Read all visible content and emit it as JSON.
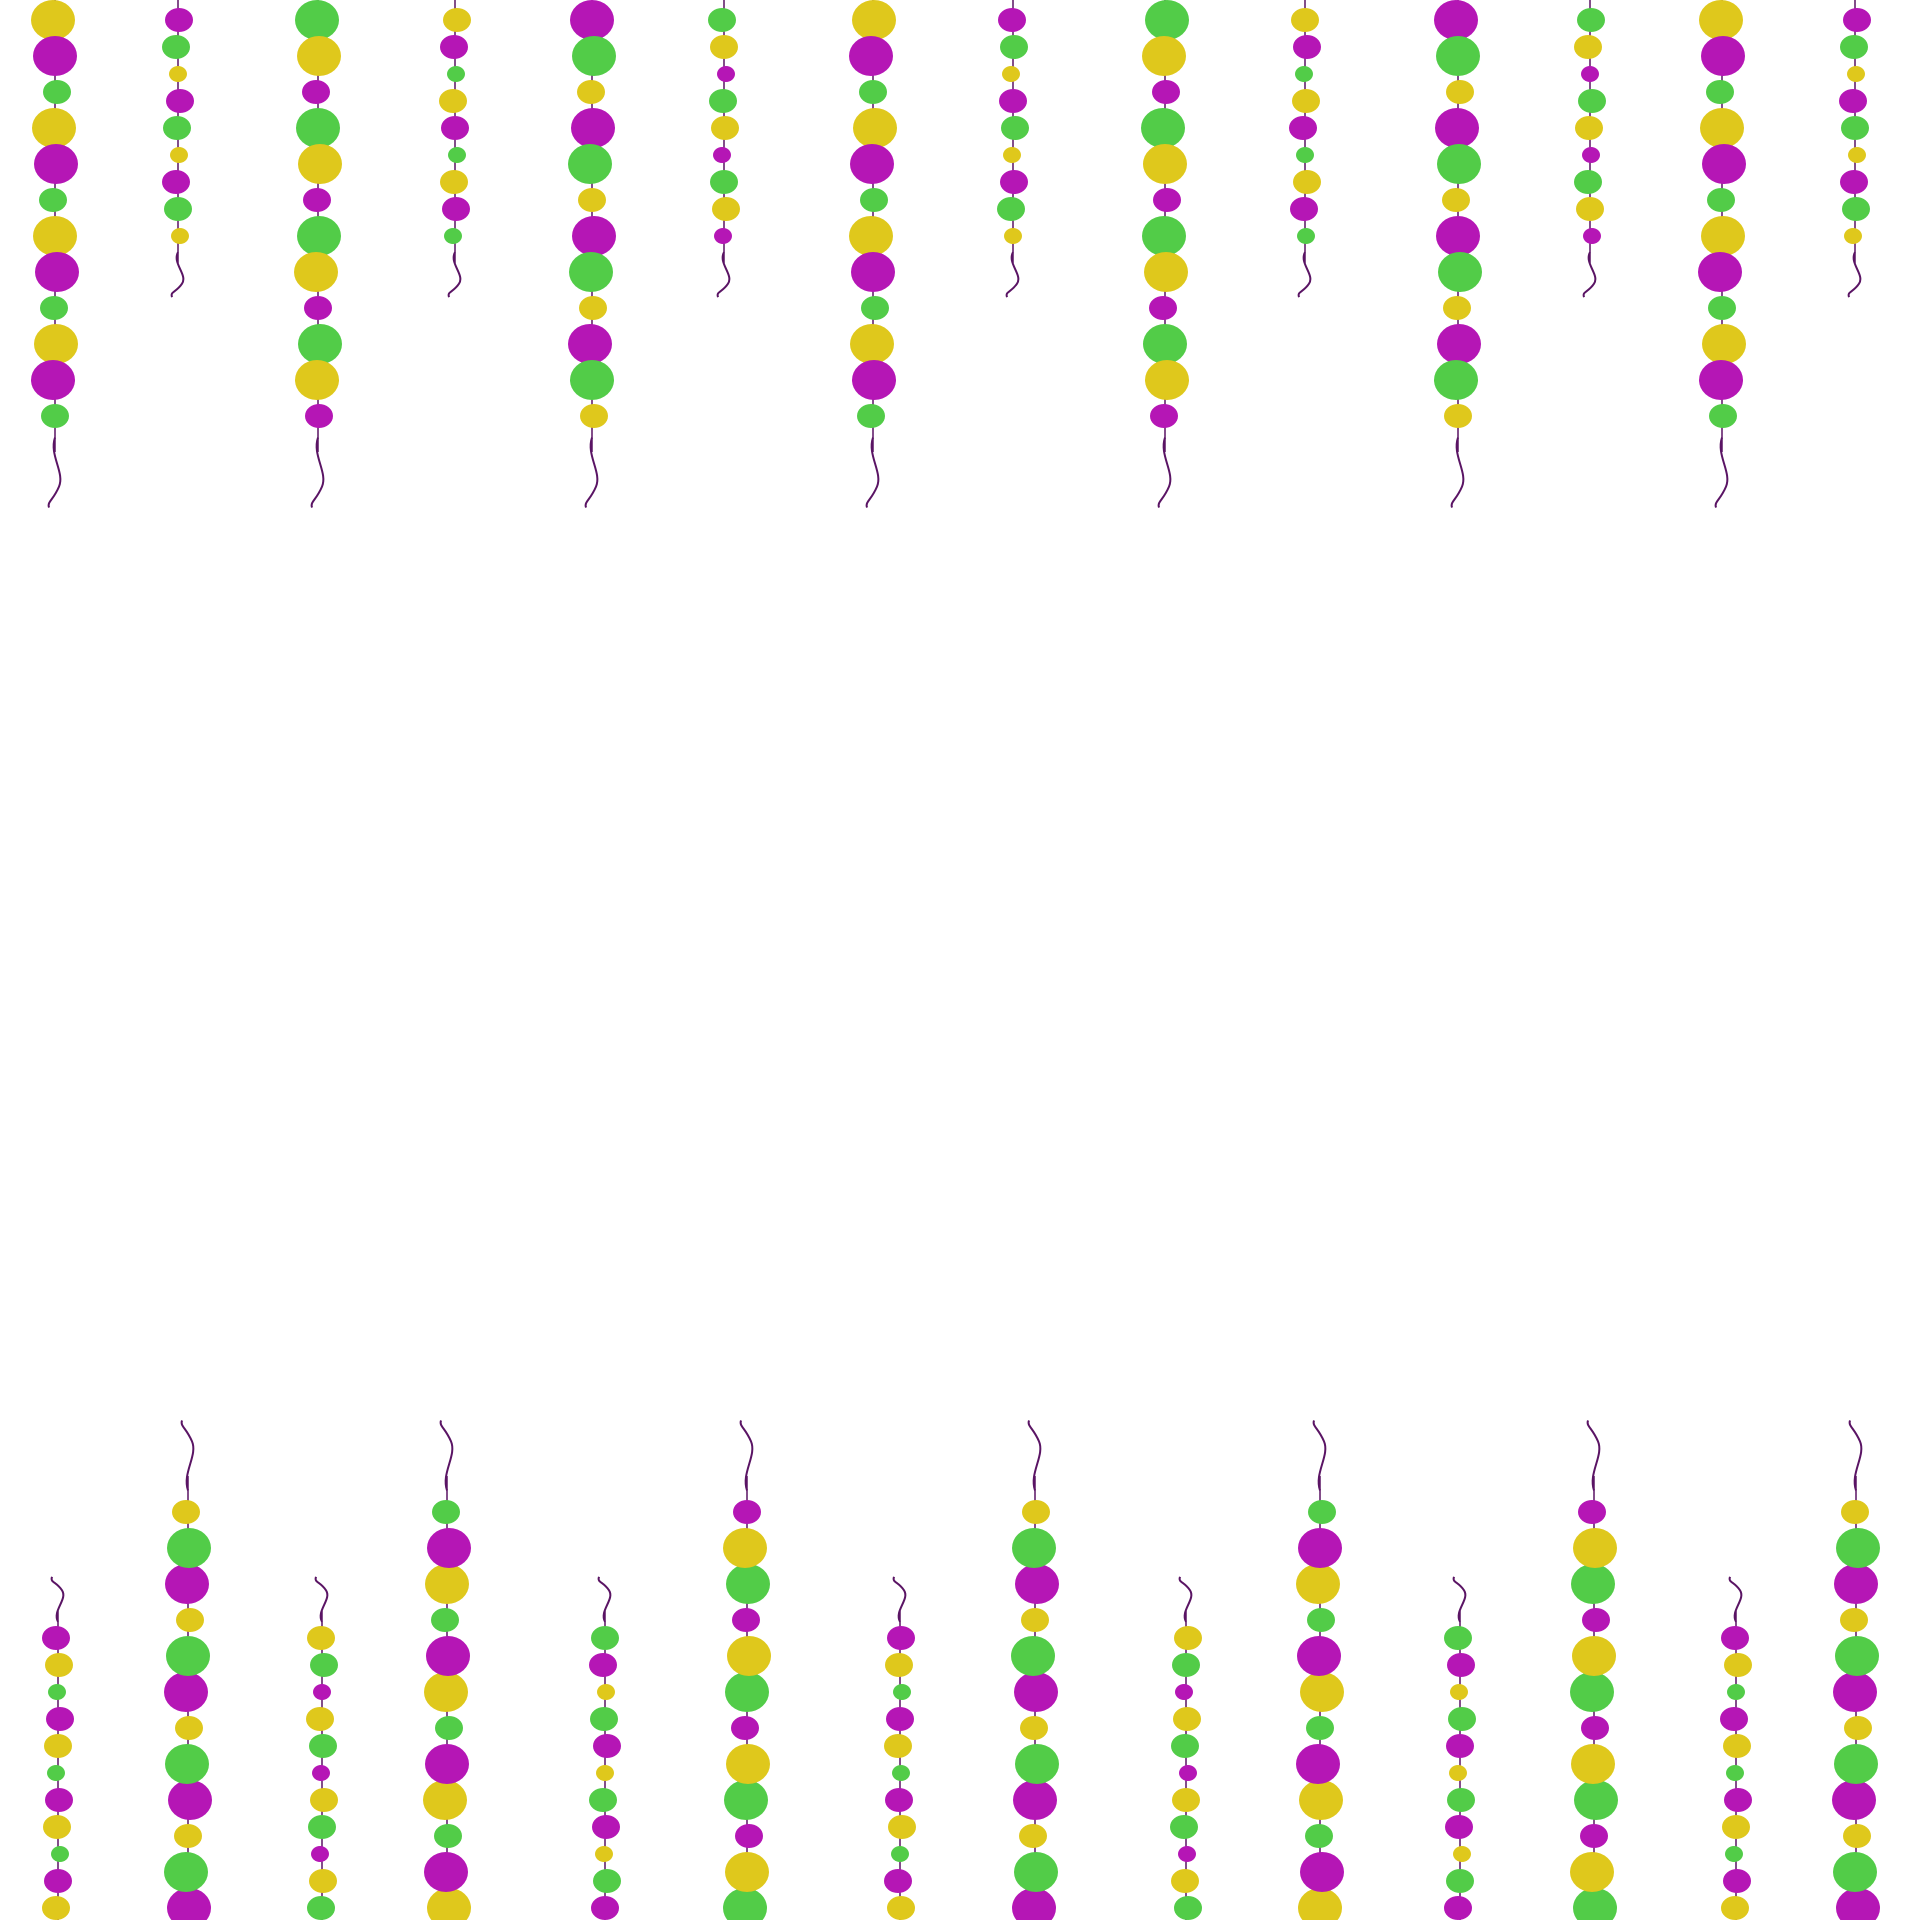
{
  "image": {
    "description_free": true,
    "background": "#ffffff"
  },
  "palette": {
    "magenta": "#B516B5",
    "green": "#52CC48",
    "yellow": "#DFC81C",
    "string": "#5A1464"
  },
  "bead_pattern": [
    "yellow",
    "magenta",
    "green",
    "yellow",
    "magenta",
    "green",
    "yellow",
    "magenta",
    "green",
    "yellow",
    "magenta",
    "yellow"
  ],
  "garlands": {
    "top_count": 14,
    "bottom_count": 14
  }
}
